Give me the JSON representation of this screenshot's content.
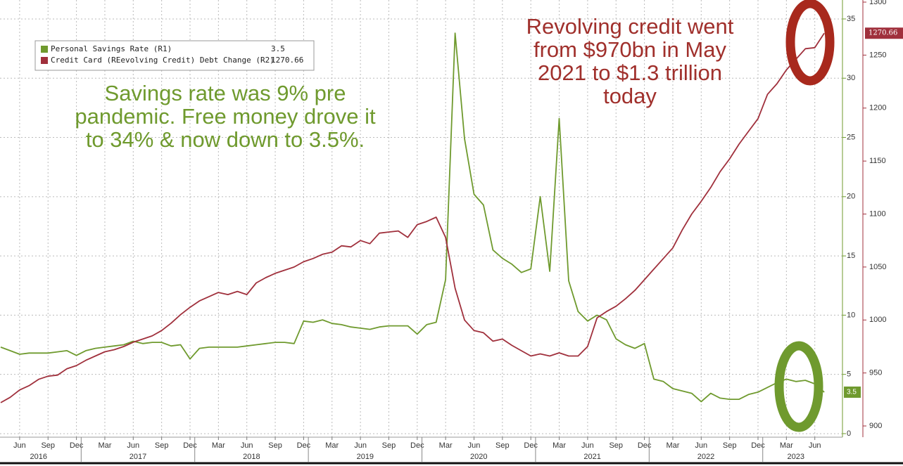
{
  "chart_data": {
    "type": "line",
    "x": [
      "2016-04",
      "2016-05",
      "2016-06",
      "2016-07",
      "2016-08",
      "2016-09",
      "2016-10",
      "2016-11",
      "2016-12",
      "2017-01",
      "2017-02",
      "2017-03",
      "2017-04",
      "2017-05",
      "2017-06",
      "2017-07",
      "2017-08",
      "2017-09",
      "2017-10",
      "2017-11",
      "2017-12",
      "2018-01",
      "2018-02",
      "2018-03",
      "2018-04",
      "2018-05",
      "2018-06",
      "2018-07",
      "2018-08",
      "2018-09",
      "2018-10",
      "2018-11",
      "2018-12",
      "2019-01",
      "2019-02",
      "2019-03",
      "2019-04",
      "2019-05",
      "2019-06",
      "2019-07",
      "2019-08",
      "2019-09",
      "2019-10",
      "2019-11",
      "2019-12",
      "2020-01",
      "2020-02",
      "2020-03",
      "2020-04",
      "2020-05",
      "2020-06",
      "2020-07",
      "2020-08",
      "2020-09",
      "2020-10",
      "2020-11",
      "2020-12",
      "2021-01",
      "2021-02",
      "2021-03",
      "2021-04",
      "2021-05",
      "2021-06",
      "2021-07",
      "2021-08",
      "2021-09",
      "2021-10",
      "2021-11",
      "2021-12",
      "2022-01",
      "2022-02",
      "2022-03",
      "2022-04",
      "2022-05",
      "2022-06",
      "2022-07",
      "2022-08",
      "2022-09",
      "2022-10",
      "2022-11",
      "2022-12",
      "2023-01",
      "2023-02",
      "2023-03",
      "2023-04",
      "2023-05",
      "2023-06",
      "2023-07"
    ],
    "series": [
      {
        "name": "Personal Savings Rate (R1)",
        "color": "#6f9a2e",
        "axis": "y",
        "values": [
          7.3,
          7.0,
          6.7,
          6.8,
          6.8,
          6.8,
          6.9,
          7.0,
          6.6,
          7.0,
          7.2,
          7.3,
          7.4,
          7.5,
          7.8,
          7.6,
          7.7,
          7.7,
          7.4,
          7.5,
          6.3,
          7.2,
          7.3,
          7.3,
          7.3,
          7.3,
          7.4,
          7.5,
          7.6,
          7.7,
          7.7,
          7.6,
          9.5,
          9.4,
          9.6,
          9.3,
          9.2,
          9.0,
          8.9,
          8.8,
          9.0,
          9.1,
          9.1,
          9.1,
          8.4,
          9.2,
          9.4,
          13.0,
          33.8,
          24.9,
          20.2,
          19.3,
          15.5,
          14.8,
          14.3,
          13.6,
          13.9,
          20.0,
          13.7,
          26.6,
          12.9,
          10.3,
          9.5,
          10.0,
          9.6,
          8.0,
          7.5,
          7.2,
          7.6,
          4.6,
          4.4,
          3.8,
          3.6,
          3.4,
          2.7,
          3.4,
          3.0,
          2.9,
          2.9,
          3.3,
          3.5,
          3.9,
          4.3,
          4.6,
          4.4,
          4.5,
          4.2,
          3.5
        ]
      },
      {
        "name": "Credit Card (REevolving Credit) Debt Change (R2)",
        "color": "#a0303c",
        "axis": "y2",
        "values": [
          922,
          927,
          934,
          938,
          944,
          947,
          948,
          954,
          957,
          962,
          966,
          970,
          972,
          975,
          979,
          982,
          985,
          990,
          997,
          1005,
          1012,
          1018,
          1022,
          1026,
          1024,
          1027,
          1024,
          1035,
          1040,
          1044,
          1047,
          1050,
          1055,
          1058,
          1062,
          1064,
          1070,
          1069,
          1075,
          1072,
          1082,
          1083,
          1084,
          1078,
          1090,
          1093,
          1097,
          1078,
          1030,
          1000,
          990,
          988,
          980,
          982,
          976,
          971,
          966,
          968,
          966,
          969,
          966,
          966,
          975,
          1002,
          1008,
          1013,
          1020,
          1028,
          1038,
          1048,
          1058,
          1068,
          1085,
          1100,
          1112,
          1125,
          1140,
          1152,
          1166,
          1178,
          1190,
          1213,
          1223,
          1236,
          1246,
          1256,
          1257,
          1270.66
        ]
      }
    ],
    "ylim": [
      -0.3,
      36.6
    ],
    "yticks": [
      0,
      5,
      10,
      15,
      20,
      25,
      30,
      35
    ],
    "y2lim": [
      889.4,
      1302
    ],
    "y2ticks": [
      900,
      950,
      1000,
      1050,
      1100,
      1150,
      1200,
      1250,
      1300
    ],
    "xticks": [
      {
        "value": "2016-06",
        "label": "Jun"
      },
      {
        "value": "2016-09",
        "label": "Sep"
      },
      {
        "value": "2016-12",
        "label": "Dec"
      },
      {
        "value": "2017-03",
        "label": "Mar"
      },
      {
        "value": "2017-06",
        "label": "Jun"
      },
      {
        "value": "2017-09",
        "label": "Sep"
      },
      {
        "value": "2017-12",
        "label": "Dec"
      },
      {
        "value": "2018-03",
        "label": "Mar"
      },
      {
        "value": "2018-06",
        "label": "Jun"
      },
      {
        "value": "2018-09",
        "label": "Sep"
      },
      {
        "value": "2018-12",
        "label": "Dec"
      },
      {
        "value": "2019-03",
        "label": "Mar"
      },
      {
        "value": "2019-06",
        "label": "Jun"
      },
      {
        "value": "2019-09",
        "label": "Sep"
      },
      {
        "value": "2019-12",
        "label": "Dec"
      },
      {
        "value": "2020-03",
        "label": "Mar"
      },
      {
        "value": "2020-06",
        "label": "Jun"
      },
      {
        "value": "2020-09",
        "label": "Sep"
      },
      {
        "value": "2020-12",
        "label": "Dec"
      },
      {
        "value": "2021-03",
        "label": "Mar"
      },
      {
        "value": "2021-06",
        "label": "Jun"
      },
      {
        "value": "2021-09",
        "label": "Sep"
      },
      {
        "value": "2021-12",
        "label": "Dec"
      },
      {
        "value": "2022-03",
        "label": "Mar"
      },
      {
        "value": "2022-06",
        "label": "Jun"
      },
      {
        "value": "2022-09",
        "label": "Sep"
      },
      {
        "value": "2022-12",
        "label": "Dec"
      },
      {
        "value": "2023-03",
        "label": "Mar"
      },
      {
        "value": "2023-06",
        "label": "Jun"
      }
    ],
    "years": [
      "2016",
      "2017",
      "2018",
      "2019",
      "2020",
      "2021",
      "2022",
      "2023"
    ],
    "grid": true,
    "annotations": [
      {
        "color": "#6f9a2e",
        "lines": [
          "Savings rate was 9% pre",
          "pandemic. Free money drove it",
          "to 34% & now down to 3.5%."
        ]
      },
      {
        "color": "#a0302c",
        "lines": [
          "Revolving credit went",
          "from $970bn in May",
          "2021 to $1.3 trillion",
          "today"
        ]
      }
    ]
  }
}
